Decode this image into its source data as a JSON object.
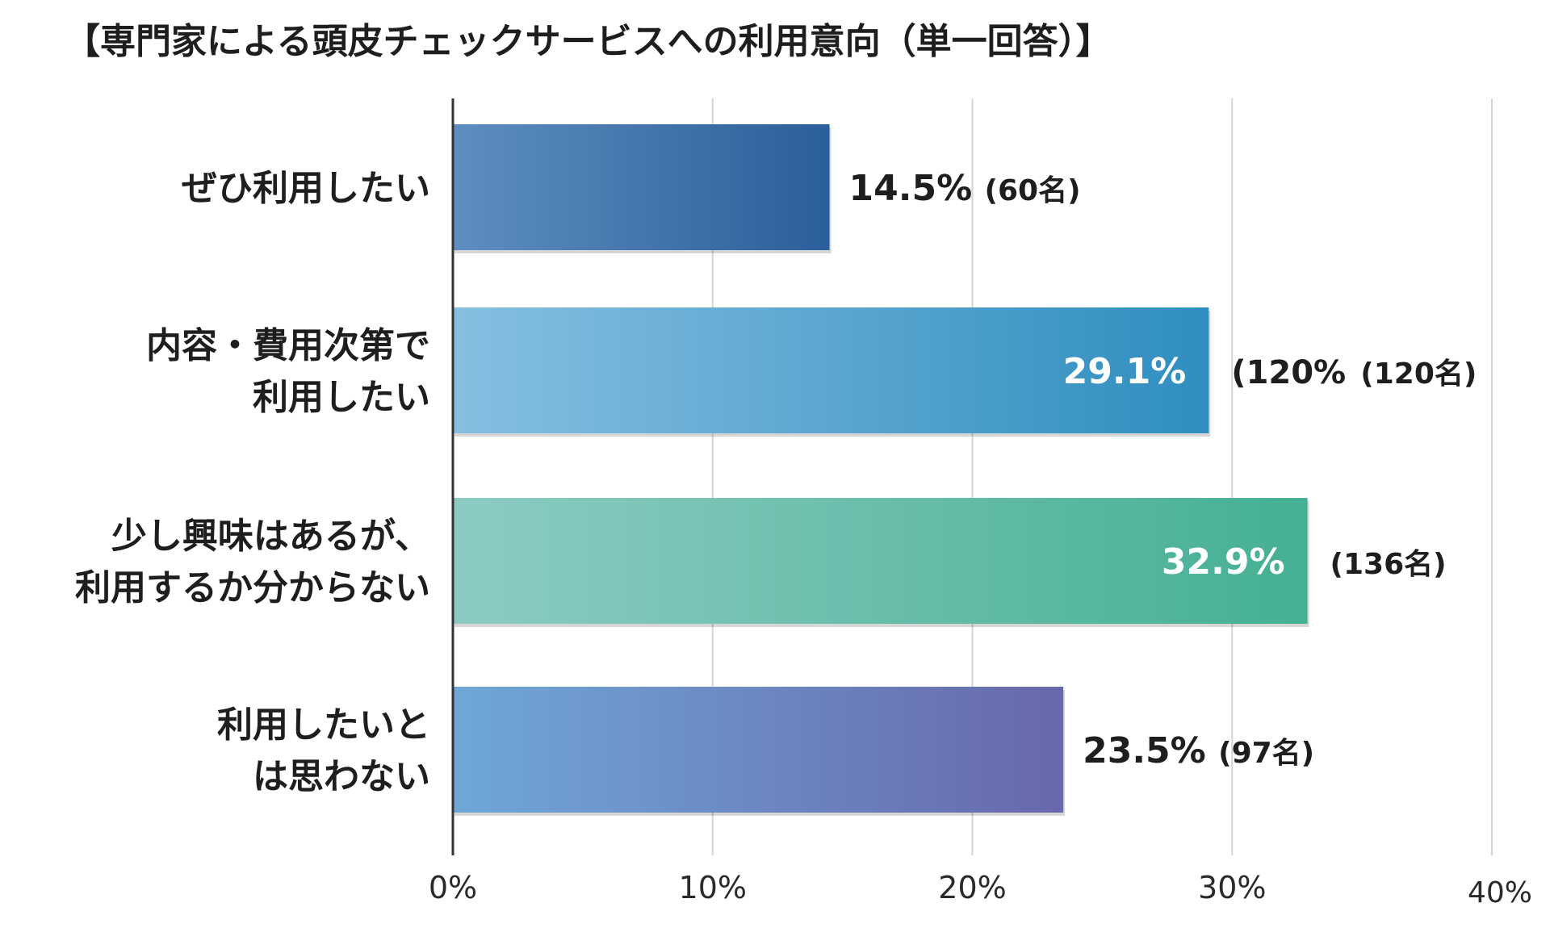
{
  "chart_data": {
    "type": "bar",
    "orientation": "horizontal",
    "title": "【専門家による頭皮チェックサービスへの利用意向（単一回答）】",
    "categories": [
      [
        "ぜひ利用したい"
      ],
      [
        "内容・費用次第で",
        "利用したい"
      ],
      [
        "少し興味はあるが、",
        "利用するか分からない"
      ],
      [
        "利用したいと",
        "は思わない"
      ]
    ],
    "values": [
      14.5,
      29.1,
      32.9,
      23.5
    ],
    "value_labels": [
      "14.5%",
      "29.1%",
      "32.9%",
      "23.5%"
    ],
    "count_labels": [
      "(60名)",
      "(120名)",
      "(136名)",
      "(97名)"
    ],
    "extra_labels": [
      "",
      "(120%",
      "",
      ""
    ],
    "xlim": [
      0,
      40
    ],
    "xticks": [
      0,
      10,
      20,
      30,
      40
    ],
    "xtick_labels": [
      "0%",
      "10%",
      "20%",
      "30%",
      "40%"
    ],
    "grid": true,
    "xlabel": "",
    "ylabel": "",
    "colors": {
      "bar1_start": "#5e8ec0",
      "bar1_end": "#2b5f9b",
      "bar2_start": "#86bfe0",
      "bar2_end": "#2f8ec0",
      "bar3_start": "#8ccbc3",
      "bar3_end": "#45b093",
      "bar4_start": "#6fa7d9",
      "bar4_end": "#6868ac",
      "gridline": "#d4d4d4",
      "axis": "#333333"
    }
  }
}
